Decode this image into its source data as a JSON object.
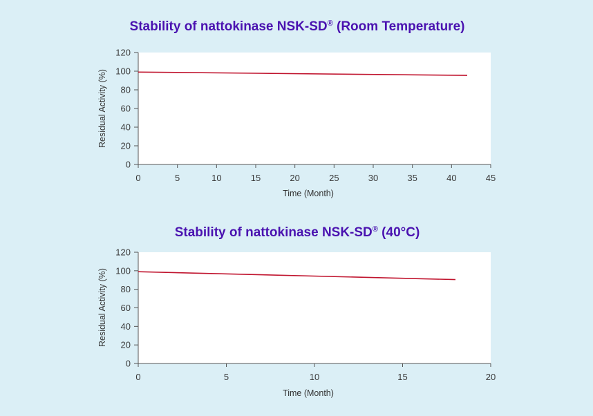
{
  "chart_data": [
    {
      "type": "line",
      "title": "Stability of nattokinase NSK-SD",
      "title_mark": "®",
      "title_suffix": " (Room Temperature)",
      "xlabel": "Time (Month)",
      "ylabel": "Residual Activity (%)",
      "xlim": [
        0,
        45
      ],
      "ylim": [
        0,
        120
      ],
      "xticks": [
        0,
        5,
        10,
        15,
        20,
        25,
        30,
        35,
        40,
        45
      ],
      "yticks": [
        0,
        20,
        40,
        60,
        80,
        100,
        120
      ],
      "grid": false,
      "series": [
        {
          "color": "#c0142e",
          "x": [
            0,
            42
          ],
          "y": [
            99,
            95.5
          ]
        }
      ]
    },
    {
      "type": "line",
      "title": "Stability of nattokinase NSK-SD",
      "title_mark": "®",
      "title_suffix": " (40°C)",
      "xlabel": "Time (Month)",
      "ylabel": "Residual Activity (%)",
      "xlim": [
        0,
        20
      ],
      "ylim": [
        0,
        120
      ],
      "xticks": [
        0,
        5,
        10,
        15,
        20
      ],
      "yticks": [
        0,
        20,
        40,
        60,
        80,
        100,
        120
      ],
      "grid": false,
      "series": [
        {
          "color": "#c0142e",
          "x": [
            0,
            18
          ],
          "y": [
            99,
            90.5
          ]
        }
      ]
    }
  ]
}
